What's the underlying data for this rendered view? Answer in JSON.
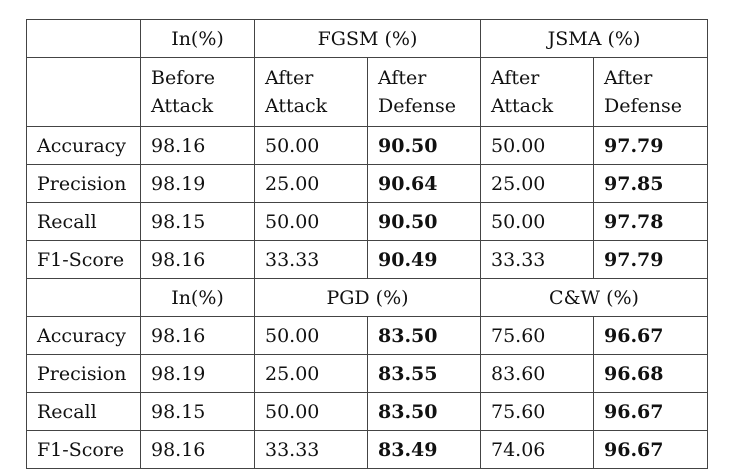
{
  "table": {
    "block1": {
      "header": {
        "in": "In(%)",
        "attack_a": "FGSM (%)",
        "attack_b": "JSMA (%)"
      },
      "subheader": {
        "before": [
          "Before",
          "Attack"
        ],
        "after_attack": [
          "After",
          "Attack"
        ],
        "after_defense": [
          "After",
          "Defense"
        ]
      },
      "rows": [
        {
          "metric": "Accuracy",
          "values": [
            "98.16",
            "50.00",
            "90.50",
            "50.00",
            "97.79"
          ]
        },
        {
          "metric": "Precision",
          "values": [
            "98.19",
            "25.00",
            "90.64",
            "25.00",
            "97.85"
          ]
        },
        {
          "metric": "Recall",
          "values": [
            "98.15",
            "50.00",
            "90.50",
            "50.00",
            "97.78"
          ]
        },
        {
          "metric": "F1-Score",
          "values": [
            "98.16",
            "33.33",
            "90.49",
            "33.33",
            "97.79"
          ]
        }
      ]
    },
    "block2": {
      "header": {
        "in": "In(%)",
        "attack_a": "PGD (%)",
        "attack_b": "C&W (%)"
      },
      "rows": [
        {
          "metric": "Accuracy",
          "values": [
            "98.16",
            "50.00",
            "83.50",
            "75.60",
            "96.67"
          ]
        },
        {
          "metric": "Precision",
          "values": [
            "98.19",
            "25.00",
            "83.55",
            "83.60",
            "96.68"
          ]
        },
        {
          "metric": "Recall",
          "values": [
            "98.15",
            "50.00",
            "83.50",
            "75.60",
            "96.67"
          ]
        },
        {
          "metric": "F1-Score",
          "values": [
            "98.16",
            "33.33",
            "83.49",
            "74.06",
            "96.67"
          ]
        }
      ]
    }
  }
}
